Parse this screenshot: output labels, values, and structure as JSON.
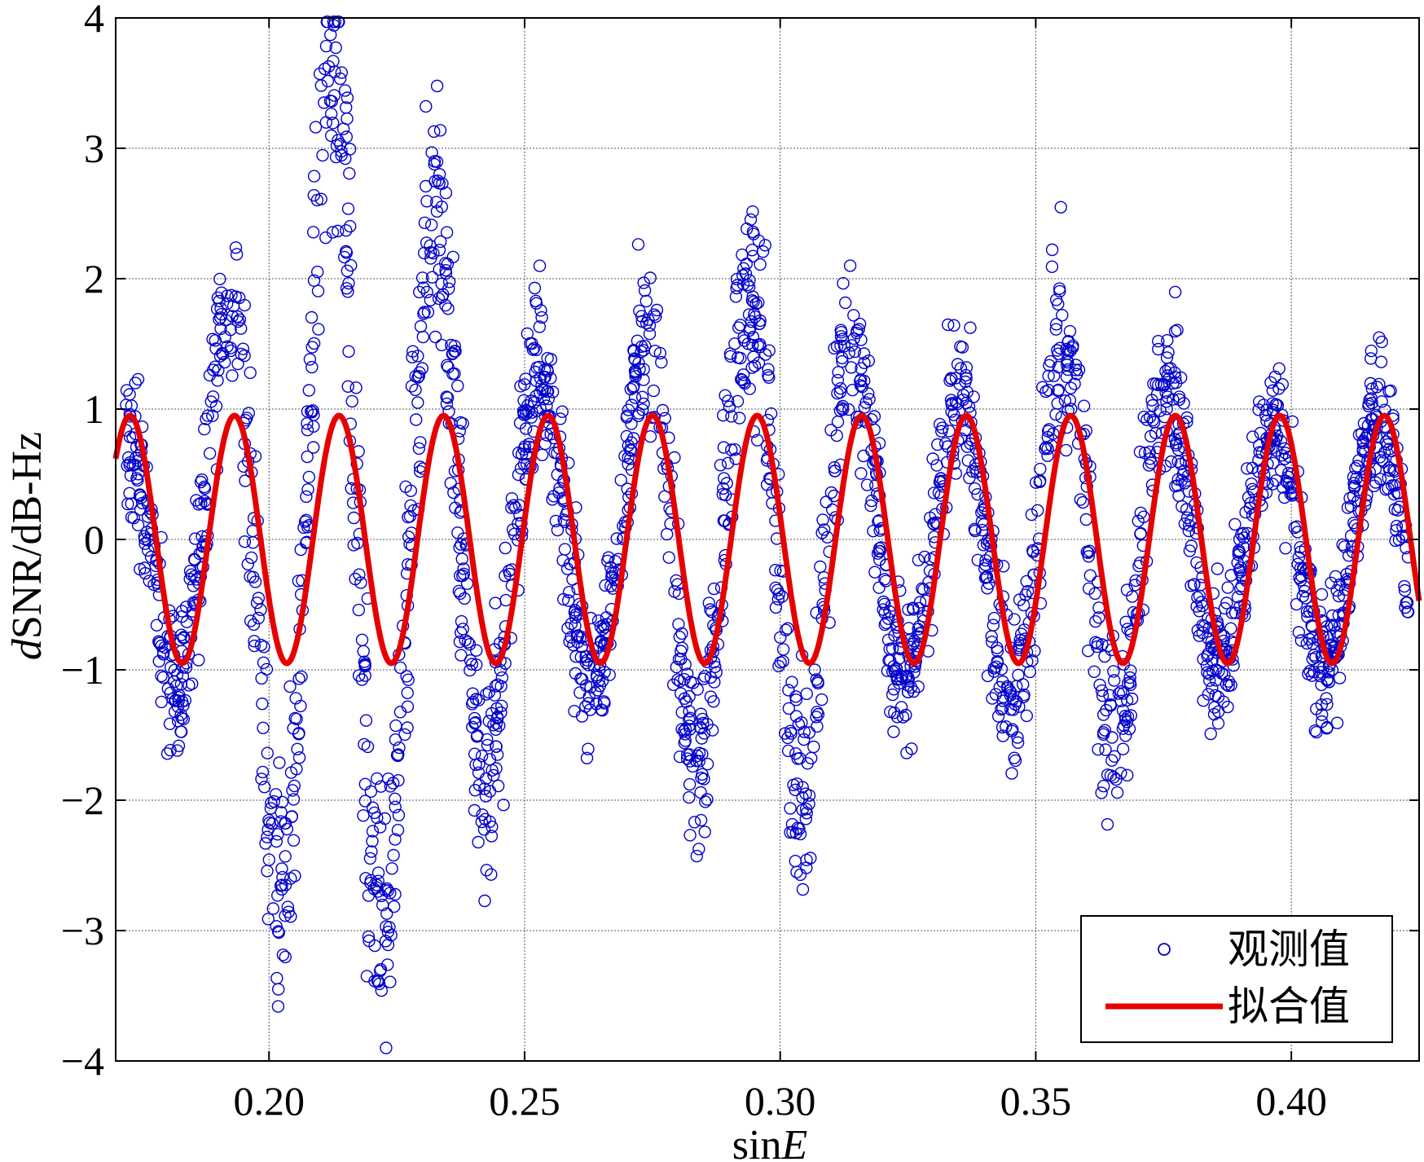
{
  "chart_data": {
    "type": "scatter",
    "title": "",
    "xlabel_prefix": "sin",
    "xlabel_italic": "E",
    "ylabel_italic": "d",
    "ylabel_rest": "SNR/dB-Hz",
    "xlim": [
      0.17,
      0.425
    ],
    "ylim": [
      -4,
      4
    ],
    "x_ticks": [
      0.2,
      0.25,
      0.3,
      0.35,
      0.4
    ],
    "x_tick_labels": [
      "0.20",
      "0.25",
      "0.30",
      "0.35",
      "0.40"
    ],
    "y_ticks": [
      4,
      3,
      2,
      1,
      0,
      -1,
      -2,
      -3,
      -4
    ],
    "y_tick_labels": [
      "4",
      "3",
      "2",
      "1",
      "0",
      "−1",
      "−2",
      "−3",
      "−4"
    ],
    "grid": true,
    "legend_position": "bottom-right",
    "series": [
      {
        "name": "观测值",
        "kind": "scatter",
        "marker": "open-circle",
        "color": "#0000cc",
        "envelope": [
          {
            "x": 0.172,
            "amp": 0.9
          },
          {
            "x": 0.185,
            "amp": 1.2
          },
          {
            "x": 0.195,
            "amp": 2.0
          },
          {
            "x": 0.205,
            "amp": 3.0
          },
          {
            "x": 0.215,
            "amp": 3.7
          },
          {
            "x": 0.225,
            "amp": 2.9
          },
          {
            "x": 0.235,
            "amp": 2.3
          },
          {
            "x": 0.245,
            "amp": 1.8
          },
          {
            "x": 0.255,
            "amp": 1.2
          },
          {
            "x": 0.265,
            "amp": 1.0
          },
          {
            "x": 0.277,
            "amp": 1.8
          },
          {
            "x": 0.287,
            "amp": 1.7
          },
          {
            "x": 0.298,
            "amp": 1.9
          },
          {
            "x": 0.307,
            "amp": 1.9
          },
          {
            "x": 0.318,
            "amp": 1.3
          },
          {
            "x": 0.328,
            "amp": 0.9
          },
          {
            "x": 0.34,
            "amp": 1.2
          },
          {
            "x": 0.35,
            "amp": 1.4
          },
          {
            "x": 0.36,
            "amp": 1.7
          },
          {
            "x": 0.37,
            "amp": 1.3
          },
          {
            "x": 0.38,
            "amp": 1.1
          },
          {
            "x": 0.392,
            "amp": 0.8
          },
          {
            "x": 0.402,
            "amp": 1.0
          },
          {
            "x": 0.412,
            "amp": 0.9
          },
          {
            "x": 0.423,
            "amp": 0.9
          }
        ]
      },
      {
        "name": "拟合值",
        "kind": "line",
        "color": "#e60000",
        "amplitude": 0.95,
        "period": 0.02045,
        "peak_x": 0.1728,
        "x_range": [
          0.17,
          0.425
        ]
      }
    ]
  }
}
